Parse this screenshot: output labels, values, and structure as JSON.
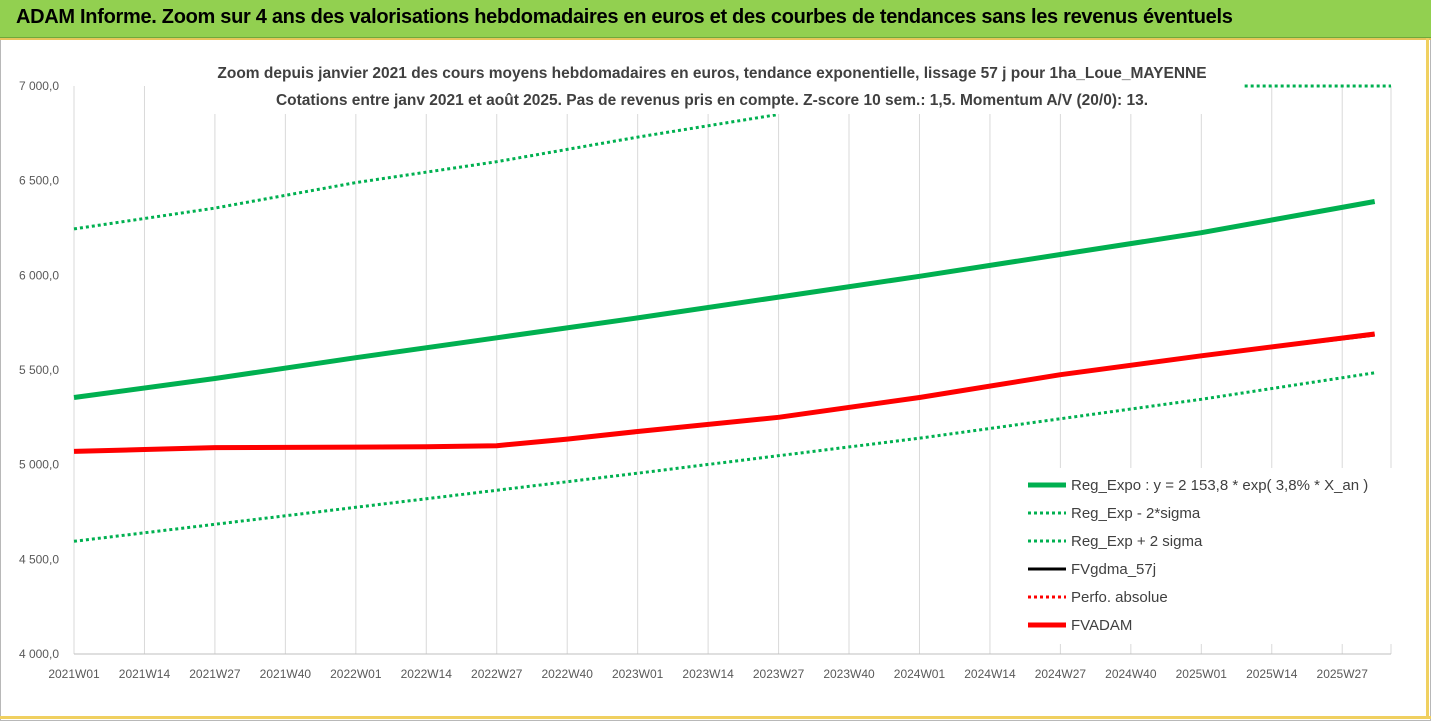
{
  "banner": {
    "title": "ADAM Informe. Zoom sur 4 ans des valorisations hebdomadaires en euros et des courbes de tendances sans les revenus éventuels"
  },
  "colors": {
    "banner_bg": "#92d050",
    "green": "#00b050",
    "red": "#ff0000",
    "black": "#000000",
    "grid": "#d9d9d9"
  },
  "chart_data": {
    "type": "line",
    "title": "Zoom depuis janvier 2021 des cours moyens hebdomadaires en euros, tendance exponentielle, lissage 57 j pour 1ha_Loue_MAYENNE",
    "subtitle": "Cotations entre janv 2021 et août 2025. Pas de revenus pris en compte. Z-score 10 sem.: 1,5. Momentum A/V (20/0): 13.",
    "ylim": [
      4000,
      7000
    ],
    "yticks": [
      4000,
      4500,
      5000,
      5500,
      6000,
      6500,
      7000
    ],
    "ytick_labels": [
      "4 000,0",
      "4 500,0",
      "5 000,0",
      "5 500,0",
      "6 000,0",
      "6 500,0",
      "7 000,0"
    ],
    "x_tick_labels": [
      "2021W01",
      "2021W14",
      "2021W27",
      "2021W40",
      "2022W01",
      "2022W14",
      "2022W27",
      "2022W40",
      "2023W01",
      "2023W14",
      "2023W27",
      "2023W40",
      "2024W01",
      "2024W14",
      "2024W27",
      "2024W40",
      "2025W01",
      "2025W14",
      "2025W27"
    ],
    "x_range_weeks": [
      0,
      243
    ],
    "grid": "vertical",
    "legend_position": "bottom-right",
    "series": [
      {
        "name": "Reg_Expo : y = 2 153,8 * exp( 3,8% *  X_an )",
        "style": "solid-thick",
        "color": "#00b050",
        "x": [
          "2021W01",
          "2021W27",
          "2022W01",
          "2022W27",
          "2023W01",
          "2023W27",
          "2024W01",
          "2024W27",
          "2025W01",
          "2025W33"
        ],
        "values": [
          5355,
          5455,
          5565,
          5670,
          5775,
          5885,
          5995,
          6110,
          6225,
          6390
        ]
      },
      {
        "name": "Reg_Exp - 2*sigma",
        "style": "dotted",
        "color": "#00b050",
        "x": [
          "2021W01",
          "2022W01",
          "2023W01",
          "2024W01",
          "2025W01",
          "2025W33"
        ],
        "values": [
          4595,
          4775,
          4955,
          5140,
          5345,
          5485
        ]
      },
      {
        "name": "Reg_Exp + 2 sigma",
        "style": "dotted",
        "color": "#00b050",
        "x": [
          "2021W01",
          "2021W27",
          "2022W01",
          "2022W27",
          "2023W01",
          "2023W27"
        ],
        "values": [
          6245,
          6355,
          6490,
          6600,
          6730,
          6850
        ],
        "note_values_above_range": [
          7000
        ]
      },
      {
        "name": "FVgdma_57j",
        "style": "solid",
        "color": "#000000",
        "x": [
          "2021W01",
          "2021W14",
          "2021W27",
          "2022W01",
          "2022W14",
          "2022W27",
          "2022W40",
          "2023W01",
          "2023W27",
          "2024W01",
          "2024W27",
          "2025W01",
          "2025W33"
        ],
        "values": [
          5070,
          5080,
          5090,
          5093,
          5095,
          5100,
          5135,
          5175,
          5250,
          5355,
          5475,
          5575,
          5685
        ]
      },
      {
        "name": "Perfo. absolue",
        "style": "dotted",
        "color": "#ff0000",
        "x": [],
        "values": []
      },
      {
        "name": "FVADAM",
        "style": "solid-thick",
        "color": "#ff0000",
        "x": [
          "2021W01",
          "2021W14",
          "2021W27",
          "2022W01",
          "2022W14",
          "2022W27",
          "2022W40",
          "2023W01",
          "2023W27",
          "2024W01",
          "2024W27",
          "2025W01",
          "2025W33"
        ],
        "values": [
          5070,
          5080,
          5090,
          5093,
          5095,
          5100,
          5135,
          5175,
          5250,
          5355,
          5475,
          5575,
          5690
        ]
      }
    ]
  }
}
